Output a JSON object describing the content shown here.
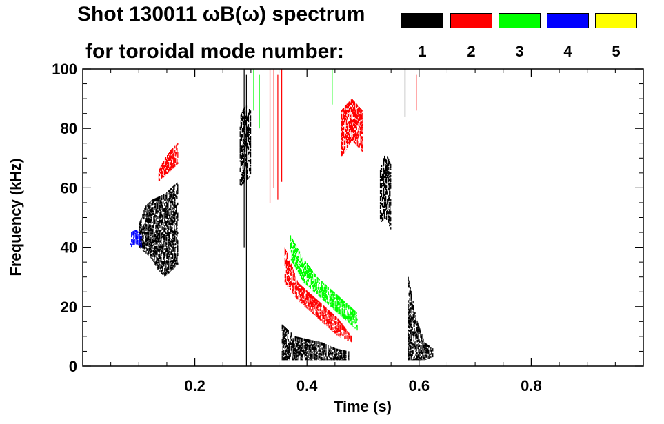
{
  "chart_data": {
    "type": "spectrogram",
    "title": "Shot 130011 ωB(ω) spectrum",
    "subtitle": "for toroidal mode number:",
    "xlabel": "Time (s)",
    "ylabel": "Frequency (kHz)",
    "xlim": [
      0.0,
      1.0
    ],
    "ylim": [
      0,
      100
    ],
    "x_ticks": [
      0.2,
      0.4,
      0.6,
      0.8
    ],
    "x_tick_labels": [
      "0.2",
      "0.4",
      "0.6",
      "0.8"
    ],
    "y_ticks": [
      0,
      20,
      40,
      60,
      80,
      100
    ],
    "y_tick_labels": [
      "0",
      "20",
      "40",
      "60",
      "80",
      "100"
    ],
    "legend": [
      {
        "label": "1",
        "color": "#000000"
      },
      {
        "label": "2",
        "color": "#ff0000"
      },
      {
        "label": "3",
        "color": "#00ff00"
      },
      {
        "label": "4",
        "color": "#0000ff"
      },
      {
        "label": "5",
        "color": "#ffff00"
      }
    ],
    "regions": [
      {
        "mode": 1,
        "t": [
          0.1,
          0.17
        ],
        "f_low": [
          40,
          38,
          36,
          32,
          30,
          32,
          34
        ],
        "f_high": [
          48,
          54,
          56,
          57,
          58,
          60,
          62
        ]
      },
      {
        "mode": 2,
        "t": [
          0.135,
          0.17
        ],
        "f_low": [
          62,
          64,
          66,
          68
        ],
        "f_high": [
          66,
          70,
          73,
          75
        ]
      },
      {
        "mode": 4,
        "t": [
          0.085,
          0.105
        ],
        "f_low": [
          40,
          41,
          40
        ],
        "f_high": [
          45,
          46,
          44
        ]
      },
      {
        "mode": 1,
        "t": [
          0.28,
          0.3
        ],
        "f_low": [
          60,
          62,
          64
        ],
        "f_high": [
          84,
          88,
          86
        ]
      },
      {
        "mode": 1,
        "t": [
          0.355,
          0.475
        ],
        "f_low": [
          2,
          2,
          2,
          2,
          2,
          2
        ],
        "f_high": [
          14,
          10,
          9,
          8,
          6,
          5
        ]
      },
      {
        "mode": 2,
        "t": [
          0.36,
          0.48
        ],
        "f_low": [
          28,
          22,
          18,
          14,
          10,
          8
        ],
        "f_high": [
          40,
          28,
          24,
          20,
          16,
          10
        ]
      },
      {
        "mode": 3,
        "t": [
          0.37,
          0.49
        ],
        "f_low": [
          36,
          28,
          24,
          20,
          16,
          12
        ],
        "f_high": [
          44,
          36,
          30,
          26,
          22,
          18
        ]
      },
      {
        "mode": 2,
        "t": [
          0.46,
          0.5
        ],
        "f_low": [
          70,
          76,
          72
        ],
        "f_high": [
          86,
          90,
          86
        ]
      },
      {
        "mode": 1,
        "t": [
          0.53,
          0.55
        ],
        "f_low": [
          48,
          50,
          46
        ],
        "f_high": [
          66,
          72,
          68
        ]
      },
      {
        "mode": 1,
        "t": [
          0.58,
          0.625
        ],
        "f_low": [
          2,
          2,
          2,
          3
        ],
        "f_high": [
          30,
          16,
          8,
          6
        ]
      }
    ],
    "streaks": [
      {
        "mode": 1,
        "t": 0.292,
        "f": [
          0,
          98
        ]
      },
      {
        "mode": 1,
        "t": 0.288,
        "f": [
          40,
          100
        ]
      },
      {
        "mode": 2,
        "t": 0.334,
        "f": [
          55,
          100
        ]
      },
      {
        "mode": 2,
        "t": 0.341,
        "f": [
          60,
          100
        ]
      },
      {
        "mode": 2,
        "t": 0.348,
        "f": [
          56,
          98
        ]
      },
      {
        "mode": 2,
        "t": 0.355,
        "f": [
          62,
          100
        ]
      },
      {
        "mode": 3,
        "t": 0.305,
        "f": [
          86,
          100
        ]
      },
      {
        "mode": 3,
        "t": 0.315,
        "f": [
          80,
          98
        ]
      },
      {
        "mode": 3,
        "t": 0.445,
        "f": [
          88,
          100
        ]
      },
      {
        "mode": 1,
        "t": 0.575,
        "f": [
          84,
          100
        ]
      },
      {
        "mode": 2,
        "t": 0.595,
        "f": [
          86,
          98
        ]
      }
    ]
  }
}
